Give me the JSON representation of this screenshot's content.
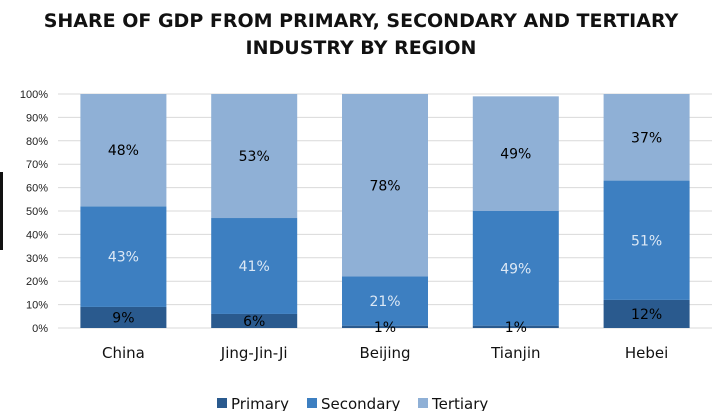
{
  "chart_data": {
    "type": "bar",
    "stacked": true,
    "title": [
      "SHARE OF GDP FROM PRIMARY, SECONDARY AND TERTIARY",
      "INDUSTRY BY REGION"
    ],
    "xlabel": "",
    "ylabel": "",
    "ylim": [
      0,
      100
    ],
    "y_ticks": [
      "0%",
      "10%",
      "20%",
      "30%",
      "40%",
      "50%",
      "60%",
      "70%",
      "80%",
      "90%",
      "100%"
    ],
    "categories": [
      "China",
      "Jing-Jin-Ji",
      "Beijing",
      "Tianjin",
      "Hebei"
    ],
    "series": [
      {
        "name": "Primary",
        "values": [
          9,
          6,
          1,
          1,
          12
        ],
        "labels": [
          "9%",
          "6%",
          "1%",
          "1%",
          "12%"
        ],
        "color": "#2a5a8e",
        "label_color": "#000000"
      },
      {
        "name": "Secondary",
        "values": [
          43,
          41,
          21,
          49,
          51
        ],
        "labels": [
          "43%",
          "41%",
          "21%",
          "49%",
          "51%"
        ],
        "color": "#3d7fc1",
        "label_color": "#dce8f5"
      },
      {
        "name": "Tertiary",
        "values": [
          48,
          53,
          78,
          49,
          37
        ],
        "labels": [
          "48%",
          "53%",
          "78%",
          "49%",
          "37%"
        ],
        "color": "#8fb0d6",
        "label_color": "#000000"
      }
    ],
    "gridlines": true,
    "legend_position": "bottom"
  }
}
